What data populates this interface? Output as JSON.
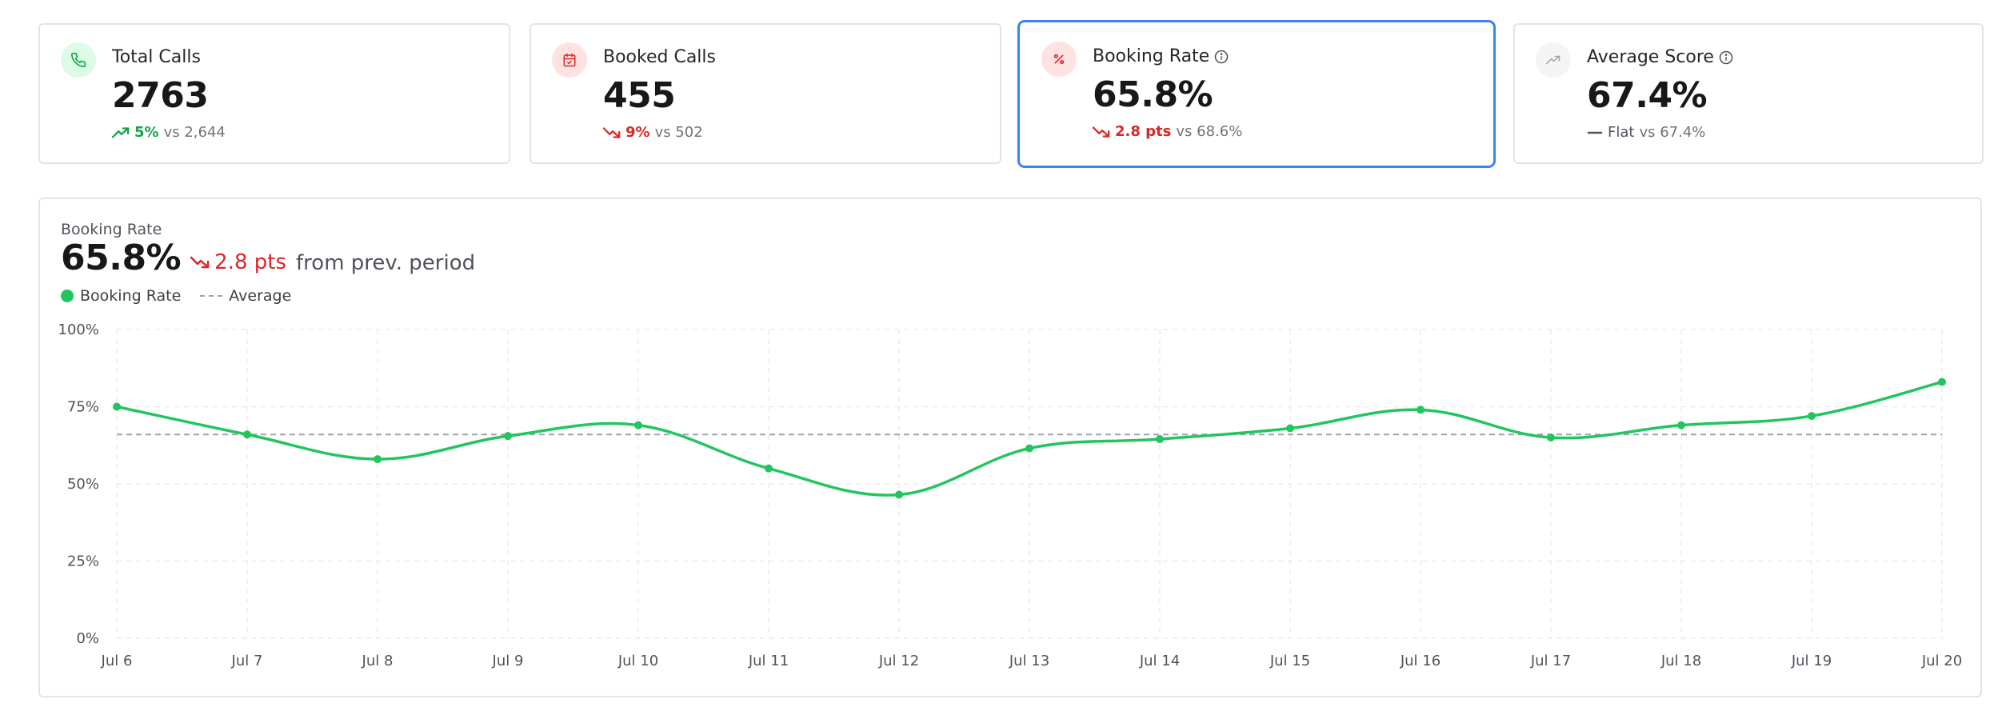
{
  "cards": [
    {
      "label": "Total Calls",
      "value": "2763",
      "delta": "5%",
      "vs": "vs 2,644",
      "trend": "up",
      "icon": "phone-icon",
      "info": false
    },
    {
      "label": "Booked Calls",
      "value": "455",
      "delta": "9%",
      "vs": "vs 502",
      "trend": "down",
      "icon": "calendar-check-icon",
      "info": false
    },
    {
      "label": "Booking Rate",
      "value": "65.8%",
      "delta": "2.8 pts",
      "vs": "vs 68.6%",
      "trend": "down",
      "icon": "percent-icon",
      "info": true,
      "selected": true
    },
    {
      "label": "Average Score",
      "value": "67.4%",
      "delta": "Flat",
      "vs": "vs 67.4%",
      "trend": "flat",
      "icon": "trending-up-icon",
      "info": true
    }
  ],
  "colors": {
    "up": "#16a34a",
    "down": "#dc2626",
    "flat": "#52525b",
    "series": "#22c55e",
    "average": "#9ca3af",
    "selected_border": "#3b82f6"
  },
  "chart": {
    "label": "Booking Rate",
    "value": "65.8%",
    "change": "2.8 pts",
    "change_suffix": "from prev. period",
    "legend_series": "Booking Rate",
    "legend_average": "Average"
  },
  "chart_data": {
    "type": "line",
    "categories": [
      "Jul 6",
      "Jul 7",
      "Jul 8",
      "Jul 9",
      "Jul 10",
      "Jul 11",
      "Jul 12",
      "Jul 13",
      "Jul 14",
      "Jul 15",
      "Jul 16",
      "Jul 17",
      "Jul 18",
      "Jul 19",
      "Jul 20"
    ],
    "series": [
      {
        "name": "Booking Rate",
        "values": [
          75,
          66,
          58,
          65.5,
          69,
          55,
          46.5,
          61.5,
          64.5,
          68,
          74,
          65,
          69,
          72,
          83
        ]
      }
    ],
    "average": 66,
    "ylim": [
      0,
      100
    ],
    "yticks": [
      "0%",
      "25%",
      "50%",
      "75%",
      "100%"
    ],
    "ytick_values": [
      0,
      25,
      50,
      75,
      100
    ],
    "grid": true,
    "legend_position": "top-left",
    "curve": "smooth"
  }
}
